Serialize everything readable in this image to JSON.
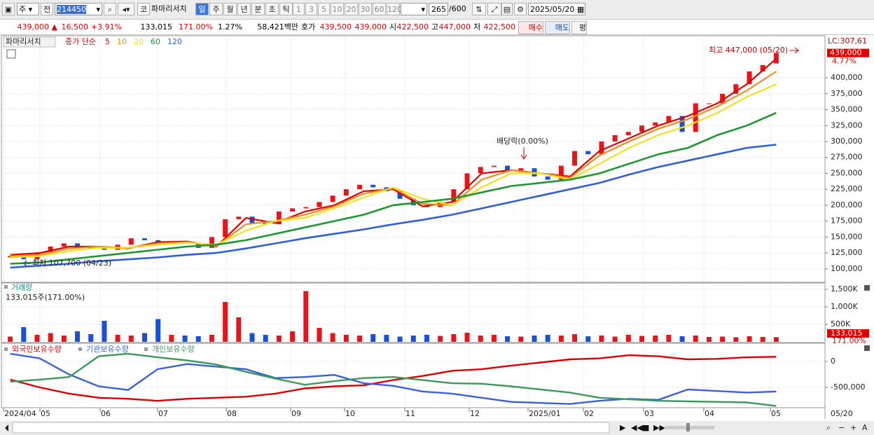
{
  "toolbar": {
    "market": "주",
    "prev": "전",
    "code": "214450",
    "kospi": "코",
    "name": "파마리서치",
    "periods": [
      "일",
      "주",
      "월",
      "년",
      "분",
      "초",
      "틱"
    ],
    "intervals": [
      "1",
      "3",
      "5",
      "10",
      "20",
      "30",
      "60",
      "120"
    ],
    "count": "265",
    "max": "/600",
    "date": "2025/05/20"
  },
  "quote": {
    "price": "439,000 ▲",
    "change": "16,500",
    "rate": "+3.91%",
    "volume": "133,015",
    "volume_rate": "171.00%",
    "turnover": "1.27%",
    "amount": "58,421백만",
    "bid_label": "호가",
    "ask": "439,500",
    "bid": "439,000",
    "open_label": "시",
    "open": "422,500",
    "high_label": "고",
    "high": "447,000",
    "low_label": "저",
    "low": "422,500",
    "buy": "매수",
    "sell": "매도",
    "avg": "평"
  },
  "chart_data": [
    {
      "type": "candlestick",
      "name": "파마리서치",
      "ma_label": "종가 단순",
      "up_color": "#e8141c",
      "down_color": "#1a4fd8",
      "open": [
        118000,
        120000,
        115000,
        125000,
        135000,
        140000,
        135000,
        132000,
        130000,
        138000,
        148000,
        145000,
        142000,
        143000,
        140000,
        133000,
        150000,
        178000,
        182000,
        172000,
        170000,
        190000,
        195000,
        197000,
        205000,
        215000,
        225000,
        232000,
        228000,
        222000,
        210000,
        200000,
        197000,
        205000,
        225000,
        250000,
        260000,
        262000,
        252000,
        258000,
        245000,
        240000,
        262000,
        285000,
        280000,
        300000,
        310000,
        315000,
        325000,
        330000,
        340000,
        315000,
        360000,
        360000,
        375000,
        390000,
        410000,
        422500
      ],
      "close": [
        120000,
        115000,
        125000,
        135000,
        140000,
        135000,
        132000,
        130000,
        138000,
        148000,
        145000,
        142000,
        143000,
        140000,
        133000,
        150000,
        178000,
        182000,
        172000,
        170000,
        190000,
        195000,
        197000,
        205000,
        215000,
        225000,
        232000,
        228000,
        222000,
        210000,
        200000,
        197000,
        205000,
        225000,
        250000,
        260000,
        262000,
        252000,
        258000,
        245000,
        240000,
        262000,
        285000,
        280000,
        300000,
        310000,
        315000,
        325000,
        330000,
        340000,
        315000,
        360000,
        360000,
        375000,
        390000,
        410000,
        420000,
        439000
      ],
      "series": [
        {
          "name": "5",
          "color": "#e00000",
          "values": [
            122000,
            125000,
            135000,
            135000,
            132000,
            142000,
            143000,
            135000,
            180000,
            172000,
            190000,
            200000,
            222000,
            225000,
            198000,
            205000,
            250000,
            255000,
            250000,
            245000,
            285000,
            305000,
            325000,
            340000,
            360000,
            390000,
            430000
          ]
        },
        {
          "name": "10",
          "color": "#f08c1e",
          "values": [
            120000,
            122000,
            132000,
            135000,
            133000,
            140000,
            142000,
            136000,
            170000,
            175000,
            185000,
            198000,
            218000,
            227000,
            202000,
            200000,
            240000,
            255000,
            250000,
            243000,
            278000,
            300000,
            320000,
            335000,
            355000,
            380000,
            410000
          ]
        },
        {
          "name": "20",
          "color": "#f2e21a",
          "values": [
            118000,
            120000,
            128000,
            133000,
            133000,
            138000,
            141000,
            138000,
            160000,
            175000,
            180000,
            195000,
            212000,
            228000,
            210000,
            200000,
            228000,
            250000,
            250000,
            240000,
            265000,
            290000,
            310000,
            325000,
            345000,
            370000,
            390000
          ]
        },
        {
          "name": "60",
          "color": "#1e9632",
          "values": [
            108000,
            110000,
            115000,
            120000,
            125000,
            130000,
            135000,
            138000,
            145000,
            155000,
            165000,
            175000,
            185000,
            200000,
            205000,
            210000,
            220000,
            230000,
            235000,
            240000,
            250000,
            265000,
            280000,
            290000,
            310000,
            325000,
            345000
          ]
        },
        {
          "name": "120",
          "color": "#2f5fd8",
          "values": [
            102000,
            105000,
            108000,
            112000,
            115000,
            118000,
            122000,
            125000,
            132000,
            140000,
            148000,
            155000,
            162000,
            170000,
            177000,
            185000,
            195000,
            205000,
            215000,
            225000,
            235000,
            248000,
            260000,
            270000,
            280000,
            290000,
            295000
          ]
        }
      ],
      "ylim": [
        80000,
        465000
      ],
      "yticks": [
        {
          "value": 100000,
          "label": "100,000"
        },
        {
          "value": 125000,
          "label": "125,000"
        },
        {
          "value": 150000,
          "label": "150,000"
        },
        {
          "value": 175000,
          "label": "175,000"
        },
        {
          "value": 200000,
          "label": "200,000"
        },
        {
          "value": 225000,
          "label": "225,000"
        },
        {
          "value": 250000,
          "label": "250,000"
        },
        {
          "value": 275000,
          "label": "275,000"
        },
        {
          "value": 300000,
          "label": "300,000"
        },
        {
          "value": 325000,
          "label": "325,000"
        },
        {
          "value": 350000,
          "label": "350,000"
        },
        {
          "value": 375000,
          "label": "375,000"
        },
        {
          "value": 400000,
          "label": "400,000"
        }
      ],
      "grid": true,
      "annotations": {
        "high": "최고 447,000 (05/20)",
        "low": "최저 107,700 (04/23)",
        "dividend": "배당락(0.00%)"
      },
      "lc_label": "LC:307,61",
      "last_value": {
        "value": 439000,
        "label": "439,000"
      },
      "last_rate": "4.77%"
    },
    {
      "type": "bar",
      "title": "거래량",
      "subtitle": "133,015주(171.00%)",
      "values": [
        150000,
        420000,
        200000,
        250000,
        180000,
        300000,
        220000,
        600000,
        200000,
        180000,
        250000,
        650000,
        200000,
        180000,
        160000,
        200000,
        1140000,
        700000,
        250000,
        200000,
        180000,
        300000,
        1450000,
        400000,
        250000,
        200000,
        180000,
        220000,
        200000,
        150000,
        180000,
        200000,
        170000,
        220000,
        260000,
        180000,
        200000,
        160000,
        150000,
        180000,
        200000,
        180000,
        220000,
        160000,
        180000,
        150000,
        200000,
        170000,
        180000,
        200000,
        160000,
        180000,
        140000,
        150000,
        130000,
        160000,
        140000,
        133015
      ],
      "ylim": [
        0,
        1640000
      ],
      "yticks": [
        {
          "value": 500000,
          "label": "500K"
        },
        {
          "value": 1000000,
          "label": "1,000K"
        },
        {
          "value": 1500000,
          "label": "1,500K"
        }
      ],
      "grid": true,
      "last_value": {
        "value": 133015,
        "label": "133,015"
      },
      "last_rate": "171.00%"
    },
    {
      "type": "line",
      "series": [
        {
          "name": "외국인보유수량",
          "color": "#e00000",
          "values": [
            -350000,
            -500000,
            -620000,
            -700000,
            -720000,
            -760000,
            -720000,
            -700000,
            -680000,
            -620000,
            -520000,
            -480000,
            -460000,
            -360000,
            -280000,
            -180000,
            -150000,
            -80000,
            -20000,
            40000,
            60000,
            120000,
            100000,
            40000,
            50000,
            80000,
            90000
          ]
        },
        {
          "name": "기관보유수량",
          "color": "#3a5fe0",
          "values": [
            150000,
            60000,
            -250000,
            -480000,
            -550000,
            -150000,
            -50000,
            -100000,
            -150000,
            -320000,
            -300000,
            -260000,
            -420000,
            -470000,
            -580000,
            -620000,
            -700000,
            -780000,
            -800000,
            -820000,
            -760000,
            -720000,
            -740000,
            -540000,
            -570000,
            -600000,
            -580000
          ]
        },
        {
          "name": "개인보유수량",
          "color": "#3c9a5a",
          "values": [
            -390000,
            -350000,
            -300000,
            100000,
            150000,
            80000,
            20000,
            -60000,
            -200000,
            -330000,
            -450000,
            -380000,
            -320000,
            -300000,
            -360000,
            -420000,
            -430000,
            -480000,
            -540000,
            -600000,
            -700000,
            -730000,
            -760000,
            -770000,
            -780000,
            -790000,
            -860000
          ]
        }
      ],
      "ylim": [
        -865000,
        311000
      ],
      "yticks": [
        0,
        {
          "value": -500000,
          "label": "-500,000"
        }
      ],
      "grid": true,
      "x_labels": [
        "2024/04",
        "05",
        "06",
        "07",
        "08",
        "09",
        "10",
        "11",
        "12",
        "2025/01",
        "02",
        "03",
        "04",
        "05"
      ],
      "x_last": "05/20"
    }
  ]
}
